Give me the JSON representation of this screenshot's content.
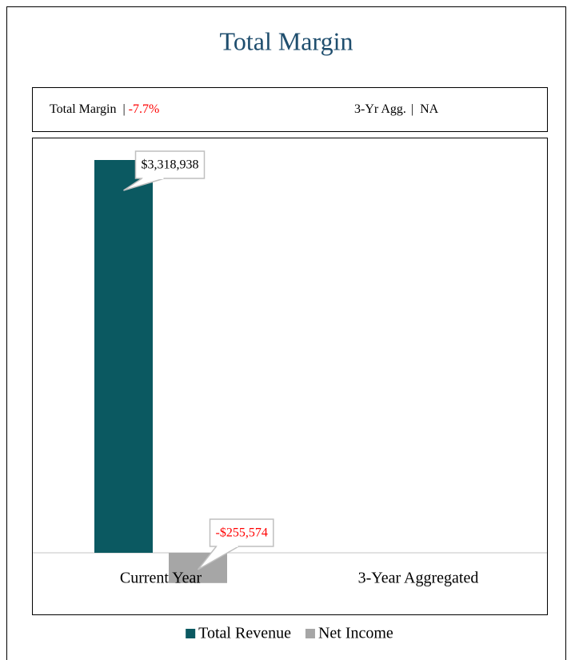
{
  "chart_data": {
    "type": "bar",
    "title": "Total Margin",
    "summary": {
      "label": "Total Margin",
      "separator": "|",
      "value": "-7.7%",
      "agg_label": "3-Yr Agg.",
      "agg_value": "NA"
    },
    "categories": [
      "Current Year",
      "3-Year Aggregated"
    ],
    "series": [
      {
        "name": "Total Revenue",
        "color": "#0b5961",
        "values": [
          3318938,
          null
        ],
        "value_labels": [
          "$3,318,938",
          null
        ]
      },
      {
        "name": "Net Income",
        "color": "#a6a6a6",
        "values": [
          -255574,
          null
        ],
        "value_labels": [
          "-$255,574",
          null
        ]
      }
    ],
    "negative_color": "#ff0000",
    "title_color": "#1f4e6e",
    "legend": "bottom"
  }
}
